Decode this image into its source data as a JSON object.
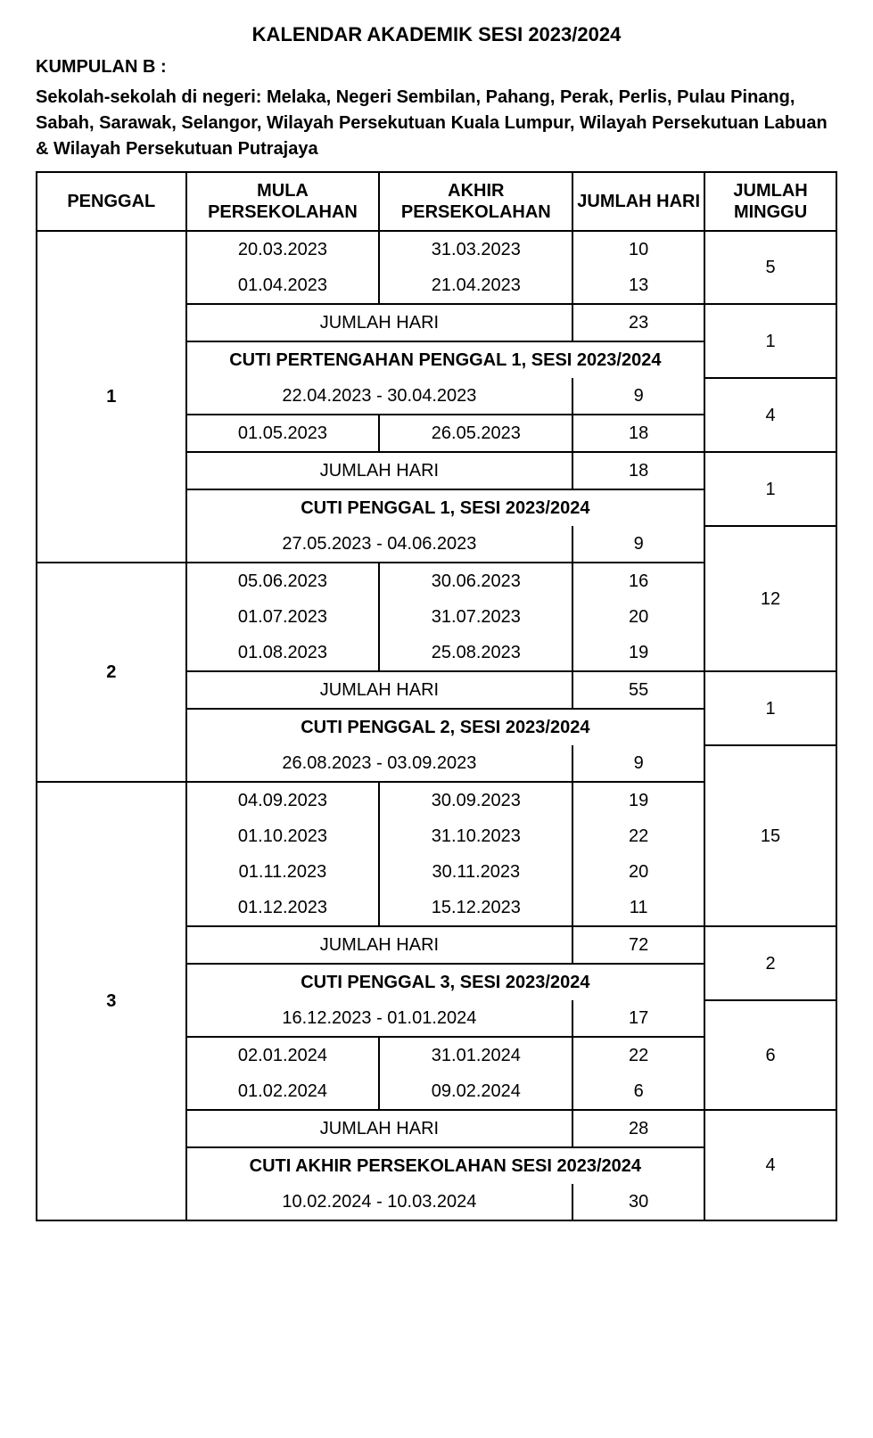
{
  "title": "KALENDAR AKADEMIK SESI 2023/2024",
  "group_label": "KUMPULAN B :",
  "description": "Sekolah-sekolah di negeri: Melaka, Negeri Sembilan, Pahang, Perak, Perlis, Pulau Pinang, Sabah, Sarawak, Selangor, Wilayah Persekutuan Kuala Lumpur, Wilayah Persekutuan Labuan & Wilayah Persekutuan Putrajaya",
  "headers": {
    "penggal": "PENGGAL",
    "mula": "MULA PERSEKOLAHAN",
    "akhir": "AKHIR PERSEKOLAHAN",
    "jumlah_hari": "JUMLAH HARI",
    "jumlah_minggu": "JUMLAH MINGGU"
  },
  "labels": {
    "jumlah_hari": "JUMLAH HARI"
  },
  "terms": {
    "t1": {
      "label": "1",
      "block1": {
        "rows": [
          {
            "mula": "20.03.2023",
            "akhir": "31.03.2023",
            "hari": "10"
          },
          {
            "mula": "01.04.2023",
            "akhir": "21.04.2023",
            "hari": "13"
          }
        ],
        "minggu": "5",
        "total": "23"
      },
      "cuti1": {
        "header": "CUTI PERTENGAHAN PENGGAL 1, SESI 2023/2024",
        "range": "22.04.2023 - 30.04.2023",
        "hari": "9",
        "minggu": "1"
      },
      "block2": {
        "rows": [
          {
            "mula": "01.05.2023",
            "akhir": "26.05.2023",
            "hari": "18"
          }
        ],
        "minggu": "4",
        "total": "18"
      },
      "cuti2": {
        "header": "CUTI PENGGAL 1, SESI 2023/2024",
        "range": "27.05.2023 - 04.06.2023",
        "hari": "9",
        "minggu": "1"
      }
    },
    "t2": {
      "label": "2",
      "block1": {
        "rows": [
          {
            "mula": "05.06.2023",
            "akhir": "30.06.2023",
            "hari": "16"
          },
          {
            "mula": "01.07.2023",
            "akhir": "31.07.2023",
            "hari": "20"
          },
          {
            "mula": "01.08.2023",
            "akhir": "25.08.2023",
            "hari": "19"
          }
        ],
        "minggu": "12",
        "total": "55"
      },
      "cuti1": {
        "header": "CUTI PENGGAL 2, SESI 2023/2024",
        "range": "26.08.2023 - 03.09.2023",
        "hari": "9",
        "minggu": "1"
      }
    },
    "t3": {
      "label": "3",
      "block1": {
        "rows": [
          {
            "mula": "04.09.2023",
            "akhir": "30.09.2023",
            "hari": "19"
          },
          {
            "mula": "01.10.2023",
            "akhir": "31.10.2023",
            "hari": "22"
          },
          {
            "mula": "01.11.2023",
            "akhir": "30.11.2023",
            "hari": "20"
          },
          {
            "mula": "01.12.2023",
            "akhir": "15.12.2023",
            "hari": "11"
          }
        ],
        "minggu": "15",
        "total": "72"
      },
      "cuti1": {
        "header": "CUTI PENGGAL 3, SESI 2023/2024",
        "range": "16.12.2023 - 01.01.2024",
        "hari": "17",
        "minggu": "2"
      },
      "block2": {
        "rows": [
          {
            "mula": "02.01.2024",
            "akhir": "31.01.2024",
            "hari": "22"
          },
          {
            "mula": "01.02.2024",
            "akhir": "09.02.2024",
            "hari": "6"
          }
        ],
        "minggu": "6",
        "total": "28"
      },
      "cuti2": {
        "header": "CUTI AKHIR PERSEKOLAHAN SESI 2023/2024",
        "range": "10.02.2024 - 10.03.2024",
        "hari": "30",
        "minggu": "4"
      }
    }
  },
  "style": {
    "text_color": "#000000",
    "background_color": "#ffffff",
    "border_color": "#000000",
    "title_fontsize": 22,
    "body_fontsize": 20,
    "font_family": "Arial, Helvetica, sans-serif",
    "columns": {
      "penggal_pct": 17,
      "mula_pct": 22,
      "akhir_pct": 22,
      "hari_pct": 15,
      "minggu_pct": 15
    }
  }
}
